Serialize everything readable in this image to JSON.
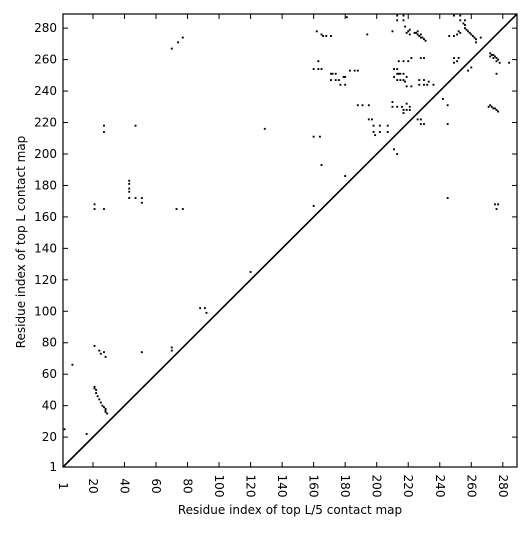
{
  "chart_data": {
    "type": "scatter",
    "title": "",
    "xlabel": "Residue index of top L/5 contact map",
    "ylabel": "Residue index of top L contact map",
    "xlim": [
      1,
      289
    ],
    "ylim": [
      1,
      289
    ],
    "x_ticks": [
      1,
      20,
      40,
      60,
      80,
      100,
      120,
      140,
      160,
      180,
      200,
      220,
      240,
      260,
      280
    ],
    "y_ticks": [
      1,
      20,
      40,
      60,
      80,
      100,
      120,
      140,
      160,
      180,
      200,
      220,
      240,
      260,
      280
    ],
    "diagonal": true,
    "grid": false,
    "upper_triangle_contacts": [
      [
        2,
        25
      ],
      [
        16,
        22
      ],
      [
        7,
        66
      ],
      [
        21,
        78
      ],
      [
        24,
        75
      ],
      [
        25,
        73
      ],
      [
        28,
        71
      ],
      [
        27,
        74
      ],
      [
        21,
        51
      ],
      [
        21,
        52
      ],
      [
        22,
        50
      ],
      [
        22,
        48
      ],
      [
        23,
        46
      ],
      [
        24,
        44
      ],
      [
        25,
        42
      ],
      [
        26,
        40
      ],
      [
        27,
        39
      ],
      [
        28,
        37
      ],
      [
        28,
        36
      ],
      [
        29,
        35
      ],
      [
        28,
        38
      ],
      [
        21,
        165
      ],
      [
        21,
        168
      ],
      [
        27,
        165
      ],
      [
        27,
        214
      ],
      [
        27,
        218
      ],
      [
        47,
        218
      ],
      [
        43,
        172
      ],
      [
        43,
        176
      ],
      [
        43,
        178
      ],
      [
        43,
        181
      ],
      [
        43,
        183
      ],
      [
        47,
        172
      ],
      [
        51,
        172
      ],
      [
        51,
        169
      ],
      [
        51,
        74
      ],
      [
        70,
        75
      ],
      [
        70,
        77
      ],
      [
        73,
        165
      ],
      [
        77,
        165
      ],
      [
        74,
        271
      ],
      [
        77,
        274
      ],
      [
        70,
        267
      ],
      [
        88,
        102
      ],
      [
        91,
        102
      ],
      [
        92,
        99
      ],
      [
        120,
        125
      ],
      [
        129,
        216
      ],
      [
        160,
        167
      ],
      [
        165,
        193
      ],
      [
        180,
        186
      ],
      [
        181,
        287
      ],
      [
        160,
        254
      ],
      [
        163,
        254
      ],
      [
        165,
        254
      ],
      [
        160,
        211
      ],
      [
        164,
        211
      ],
      [
        163,
        259
      ],
      [
        162,
        278
      ],
      [
        165,
        276
      ],
      [
        166,
        275
      ],
      [
        168,
        275
      ],
      [
        171,
        275
      ],
      [
        171,
        251
      ],
      [
        172,
        251
      ],
      [
        174,
        251
      ],
      [
        171,
        247
      ],
      [
        174,
        247
      ],
      [
        176,
        247
      ],
      [
        179,
        249
      ],
      [
        180,
        249
      ],
      [
        177,
        244
      ],
      [
        180,
        244
      ],
      [
        183,
        253
      ],
      [
        186,
        253
      ],
      [
        188,
        253
      ],
      [
        188,
        231
      ],
      [
        191,
        231
      ],
      [
        195,
        231
      ],
      [
        194,
        276
      ],
      [
        195,
        222
      ],
      [
        197,
        222
      ],
      [
        198,
        218
      ],
      [
        198,
        214
      ],
      [
        199,
        212
      ],
      [
        202,
        214
      ],
      [
        202,
        218
      ],
      [
        207,
        214
      ],
      [
        207,
        218
      ],
      [
        211,
        203
      ],
      [
        213,
        200
      ],
      [
        210,
        233
      ],
      [
        210,
        230
      ],
      [
        213,
        230
      ],
      [
        216,
        230
      ],
      [
        217,
        228
      ],
      [
        217,
        226
      ],
      [
        219,
        228
      ],
      [
        219,
        232
      ],
      [
        221,
        230
      ],
      [
        221,
        228
      ],
      [
        211,
        254
      ],
      [
        211,
        249
      ],
      [
        213,
        254
      ],
      [
        213,
        251
      ],
      [
        214,
        251
      ],
      [
        215,
        251
      ],
      [
        217,
        251
      ],
      [
        218,
        246
      ],
      [
        219,
        249
      ],
      [
        219,
        243
      ],
      [
        222,
        243
      ],
      [
        213,
        247
      ],
      [
        215,
        247
      ],
      [
        217,
        247
      ],
      [
        214,
        259
      ],
      [
        217,
        259
      ],
      [
        220,
        259
      ],
      [
        222,
        261
      ],
      [
        221,
        276
      ],
      [
        221,
        279
      ],
      [
        224,
        277
      ],
      [
        226,
        278
      ],
      [
        228,
        276
      ],
      [
        229,
        274
      ],
      [
        230,
        273
      ],
      [
        231,
        272
      ],
      [
        213,
        285
      ],
      [
        213,
        288
      ],
      [
        217,
        285
      ],
      [
        217,
        288
      ],
      [
        210,
        278
      ],
      [
        218,
        281
      ],
      [
        220,
        278
      ],
      [
        219,
        277
      ],
      [
        225,
        277
      ],
      [
        226,
        276
      ],
      [
        227,
        275
      ],
      [
        228,
        274
      ],
      [
        226,
        222
      ],
      [
        228,
        222
      ],
      [
        228,
        219
      ],
      [
        230,
        219
      ],
      [
        228,
        261
      ],
      [
        230,
        261
      ],
      [
        227,
        247
      ],
      [
        230,
        247
      ],
      [
        227,
        244
      ],
      [
        230,
        244
      ],
      [
        232,
        244
      ],
      [
        233,
        246
      ],
      [
        236,
        244
      ],
      [
        242,
        235
      ],
      [
        245,
        231
      ],
      [
        245,
        219
      ],
      [
        245,
        172
      ],
      [
        246,
        275
      ],
      [
        249,
        275
      ],
      [
        251,
        276
      ],
      [
        252,
        278
      ],
      [
        253,
        277
      ],
      [
        249,
        261
      ],
      [
        251,
        259
      ],
      [
        252,
        261
      ],
      [
        249,
        258
      ],
      [
        249,
        288
      ],
      [
        253,
        288
      ],
      [
        253,
        285
      ],
      [
        256,
        285
      ],
      [
        255,
        283
      ],
      [
        256,
        282
      ],
      [
        256,
        280
      ],
      [
        257,
        279
      ],
      [
        258,
        278
      ],
      [
        259,
        277
      ],
      [
        260,
        276
      ],
      [
        261,
        275
      ],
      [
        262,
        274
      ],
      [
        263,
        273
      ],
      [
        266,
        274
      ],
      [
        263,
        271
      ],
      [
        258,
        253
      ],
      [
        260,
        255
      ],
      [
        271,
        230
      ],
      [
        272,
        231
      ],
      [
        273,
        230
      ],
      [
        274,
        229
      ],
      [
        275,
        229
      ],
      [
        276,
        228
      ],
      [
        277,
        227
      ],
      [
        272,
        264
      ],
      [
        272,
        262
      ],
      [
        273,
        263
      ],
      [
        274,
        263
      ],
      [
        274,
        261
      ],
      [
        275,
        262
      ],
      [
        276,
        261
      ],
      [
        276,
        259
      ],
      [
        277,
        260
      ],
      [
        278,
        258
      ],
      [
        276,
        251
      ],
      [
        275,
        168
      ],
      [
        277,
        168
      ],
      [
        276,
        165
      ],
      [
        284,
        258
      ]
    ]
  }
}
